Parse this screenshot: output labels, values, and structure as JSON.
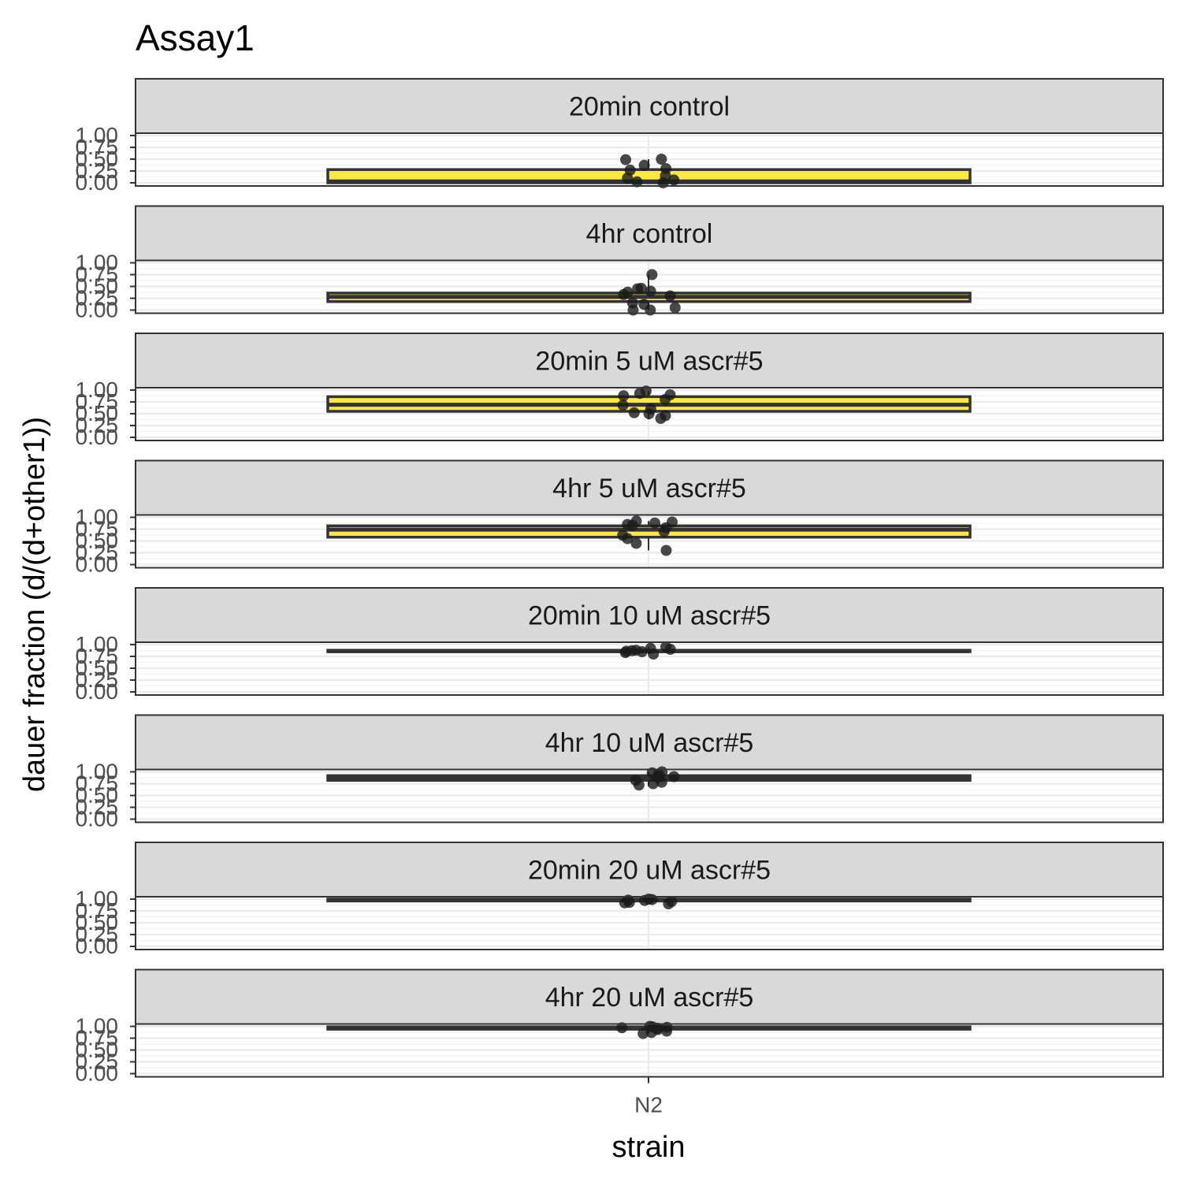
{
  "chart_data": {
    "type": "box",
    "title": "Assay1",
    "xlabel": "strain",
    "ylabel": "dauer fraction (d/(d+other1))",
    "categories": [
      "N2"
    ],
    "ylim": [
      0,
      1
    ],
    "yticks": [
      "0.00",
      "0.25",
      "0.50",
      "0.75",
      "1.00"
    ],
    "grid": true,
    "box_fill": "#FDE74C",
    "point_color": "#1a1a1a",
    "strip_fill": "#D9D9D9",
    "facets": [
      {
        "label": "20min control",
        "box": {
          "min": 0.0,
          "q1": 0.0,
          "median": 0.03,
          "q3": 0.28,
          "max": 0.5
        },
        "points": [
          0.5,
          0.49,
          0.37,
          0.3,
          0.27,
          0.15,
          0.1,
          0.06,
          0.02,
          0.0
        ]
      },
      {
        "label": "4hr control",
        "box": {
          "min": 0.0,
          "q1": 0.18,
          "median": 0.28,
          "q3": 0.36,
          "max": 0.75
        },
        "points": [
          0.75,
          0.46,
          0.45,
          0.4,
          0.38,
          0.33,
          0.3,
          0.15,
          0.12,
          0.05,
          0.0,
          0.0
        ]
      },
      {
        "label": "20min 5 uM ascr#5",
        "box": {
          "min": 0.38,
          "q1": 0.55,
          "median": 0.69,
          "q3": 0.86,
          "max": 0.98
        },
        "points": [
          0.98,
          0.93,
          0.9,
          0.88,
          0.8,
          0.68,
          0.6,
          0.52,
          0.5,
          0.46,
          0.4
        ]
      },
      {
        "label": "4hr 5 uM ascr#5",
        "box": {
          "min": 0.3,
          "q1": 0.58,
          "median": 0.74,
          "q3": 0.82,
          "max": 0.92
        },
        "points": [
          0.92,
          0.9,
          0.88,
          0.85,
          0.83,
          0.78,
          0.7,
          0.62,
          0.55,
          0.45,
          0.3
        ]
      },
      {
        "label": "20min 10 uM ascr#5",
        "box": {
          "min": 0.8,
          "q1": 0.85,
          "median": 0.86,
          "q3": 0.88,
          "max": 0.95
        },
        "points": [
          0.95,
          0.92,
          0.9,
          0.88,
          0.87,
          0.86,
          0.85,
          0.83,
          0.8
        ]
      },
      {
        "label": "4hr 10 uM ascr#5",
        "box": {
          "min": 0.7,
          "q1": 0.82,
          "median": 0.88,
          "q3": 0.92,
          "max": 1.0
        },
        "points": [
          1.0,
          0.98,
          0.95,
          0.9,
          0.88,
          0.82,
          0.78,
          0.75,
          0.72
        ]
      },
      {
        "label": "20min 20 uM ascr#5",
        "box": {
          "min": 0.9,
          "q1": 0.96,
          "median": 0.98,
          "q3": 1.0,
          "max": 1.0
        },
        "points": [
          1.0,
          0.99,
          0.98,
          0.97,
          0.95,
          0.93,
          0.92,
          0.9
        ]
      },
      {
        "label": "4hr 20 uM ascr#5",
        "box": {
          "min": 0.85,
          "q1": 0.94,
          "median": 0.97,
          "q3": 0.99,
          "max": 1.0
        },
        "points": [
          1.0,
          0.99,
          0.98,
          0.97,
          0.96,
          0.93,
          0.9,
          0.87,
          0.85
        ]
      }
    ]
  }
}
